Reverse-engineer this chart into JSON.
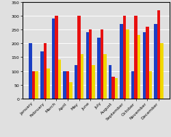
{
  "months": [
    "January",
    "February",
    "March",
    "April",
    "May",
    "June",
    "July",
    "August",
    "September",
    "October",
    "November",
    "December"
  ],
  "blue": [
    200,
    170,
    290,
    100,
    120,
    240,
    220,
    120,
    270,
    100,
    240,
    270
  ],
  "red": [
    100,
    200,
    300,
    100,
    300,
    250,
    250,
    80,
    300,
    300,
    260,
    320
  ],
  "yellow": [
    100,
    110,
    140,
    60,
    160,
    120,
    160,
    75,
    250,
    230,
    100,
    200
  ],
  "bar_colors": [
    "#1a3fc4",
    "#e81010",
    "#f0d800"
  ],
  "bg_color": "#e0e0e0",
  "ylim": [
    0,
    350
  ],
  "yticks": [
    0,
    50,
    100,
    150,
    200,
    250,
    300,
    350
  ],
  "tick_fontsize": 4.5,
  "xlabel_fontsize": 4.5,
  "bar_width": 0.27,
  "border_color": "#000000",
  "grid_color": "#ffffff"
}
